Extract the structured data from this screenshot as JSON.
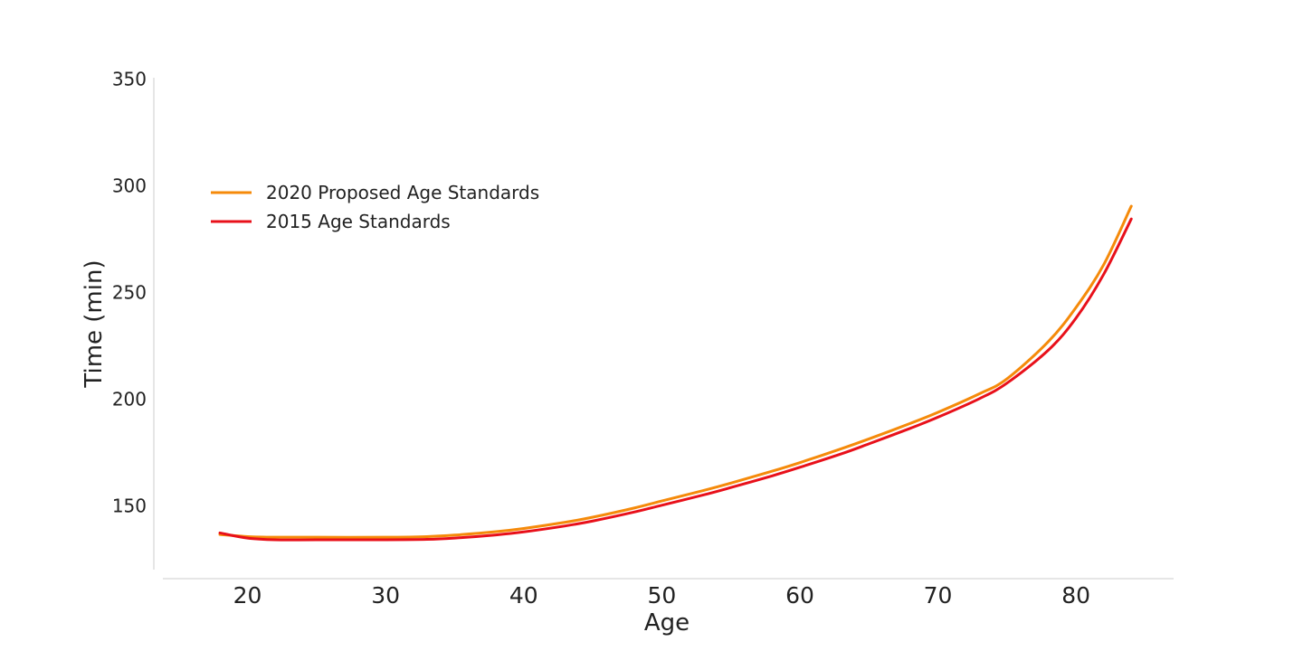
{
  "chart_data": {
    "type": "line",
    "xlabel": "Age",
    "ylabel": "Time (min)",
    "xlim": [
      14,
      87
    ],
    "ylim": [
      120,
      352
    ],
    "x_ticks": [
      "20",
      "30",
      "40",
      "50",
      "60",
      "70",
      "80"
    ],
    "y_ticks": [
      "150",
      "200",
      "250",
      "300",
      "350"
    ],
    "legend_position": "top-left",
    "grid": false,
    "series": [
      {
        "name": "2020 Proposed Age Standards",
        "color": "#f58a0a",
        "x": [
          18,
          20,
          22,
          25,
          30,
          33,
          35,
          38,
          40,
          43,
          45,
          48,
          50,
          53,
          55,
          58,
          60,
          63,
          65,
          68,
          70,
          73,
          75,
          78,
          80,
          82,
          84
        ],
        "y": [
          136.5,
          135.5,
          135.2,
          135.2,
          135.2,
          135.5,
          136.2,
          137.8,
          139.3,
          142.2,
          144.6,
          148.9,
          152.2,
          157.1,
          160.6,
          166.2,
          170.2,
          176.7,
          181.3,
          188.6,
          193.8,
          202.5,
          209.5,
          227.0,
          243.0,
          263.0,
          290.5
        ]
      },
      {
        "name": "2015 Age Standards",
        "color": "#e8101a",
        "x": [
          18,
          20,
          22,
          25,
          30,
          33,
          35,
          38,
          40,
          43,
          45,
          48,
          50,
          53,
          55,
          58,
          60,
          63,
          65,
          68,
          70,
          73,
          75,
          78,
          80,
          82,
          84
        ],
        "y": [
          137.2,
          134.8,
          134.0,
          134.0,
          134.0,
          134.2,
          134.8,
          136.3,
          137.7,
          140.5,
          142.8,
          147.0,
          150.2,
          155.0,
          158.5,
          164.0,
          168.0,
          174.3,
          179.0,
          186.3,
          191.5,
          200.2,
          207.5,
          223.0,
          238.0,
          258.5,
          284.5
        ]
      }
    ]
  }
}
